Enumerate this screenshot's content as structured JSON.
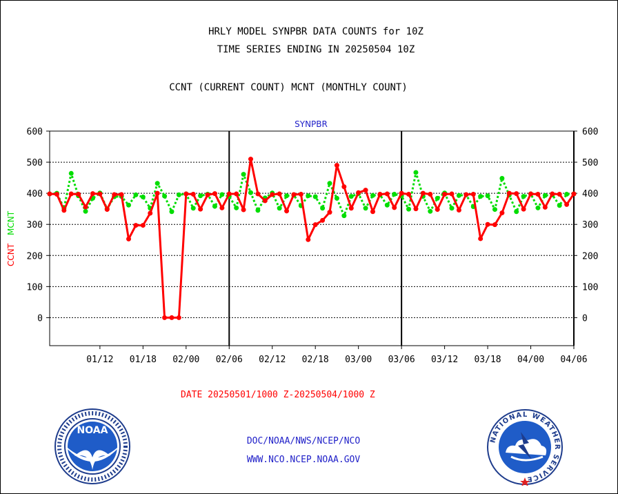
{
  "header": {
    "title_line1": "HRLY MODEL SYNPBR DATA COUNTS for 10Z",
    "title_line2": "TIME SERIES ENDING IN 20250504 10Z",
    "subtitle": "CCNT (CURRENT COUNT) MCNT (MONTHLY COUNT)"
  },
  "footer": {
    "date_range": "DATE 20250501/1000 Z-20250504/1000 Z",
    "org_path": "DOC/NOAA/NWS/NCEP/NCO",
    "website": "WWW.NCO.NCEP.NOAA.GOV"
  },
  "logos": {
    "left": "NOAA",
    "right_ring_text": "NATIONAL WEATHER SERVICE"
  },
  "colors": {
    "ccnt": "#ff0000",
    "mcnt": "#00dd00",
    "panel_title": "#1e1ec8",
    "footer_text": "#1e1ec8"
  },
  "chart_data": {
    "type": "line",
    "panel_title": "SYNPBR",
    "ylabel_left_ccnt": "CCNT",
    "ylabel_left_mcnt": "MCNT",
    "ylim": [
      -90,
      600
    ],
    "yticks": [
      0,
      100,
      200,
      300,
      400,
      500,
      600
    ],
    "ytick_labels": [
      "0",
      "100",
      "200",
      "300",
      "400",
      "500",
      "600"
    ],
    "xtick_labels": [
      "01/12",
      "01/18",
      "02/00",
      "02/06",
      "02/12",
      "02/18",
      "03/00",
      "03/06",
      "03/12",
      "03/18",
      "04/00",
      "04/06"
    ],
    "grid": true,
    "day_separators": [
      "02/06",
      "03/06",
      "04/06"
    ],
    "series": [
      {
        "name": "CCNT",
        "values": [
          398,
          397,
          345,
          398,
          397,
          356,
          399,
          398,
          348,
          396,
          396,
          253,
          297,
          297,
          336,
          400,
          0,
          0,
          0,
          398,
          397,
          349,
          395,
          399,
          353,
          398,
          398,
          347,
          510,
          398,
          376,
          396,
          398,
          343,
          396,
          397,
          251,
          299,
          313,
          339,
          490,
          421,
          352,
          402,
          410,
          341,
          397,
          398,
          354,
          400,
          397,
          350,
          400,
          397,
          348,
          397,
          398,
          346,
          396,
          397,
          254,
          300,
          299,
          337,
          400,
          399,
          349,
          398,
          397,
          355,
          398,
          397,
          364,
          398
        ]
      },
      {
        "name": "MCNT",
        "values": [
          398,
          400,
          352,
          464,
          392,
          342,
          384,
          401,
          350,
          389,
          390,
          362,
          395,
          388,
          352,
          432,
          391,
          341,
          395,
          398,
          352,
          392,
          397,
          358,
          396,
          390,
          353,
          461,
          402,
          345,
          385,
          401,
          352,
          392,
          394,
          360,
          392,
          389,
          352,
          432,
          384,
          328,
          390,
          399,
          352,
          393,
          395,
          362,
          397,
          392,
          349,
          467,
          390,
          342,
          384,
          401,
          352,
          393,
          395,
          357,
          390,
          392,
          348,
          448,
          394,
          341,
          390,
          398,
          353,
          393,
          395,
          361,
          397,
          398
        ]
      }
    ]
  }
}
